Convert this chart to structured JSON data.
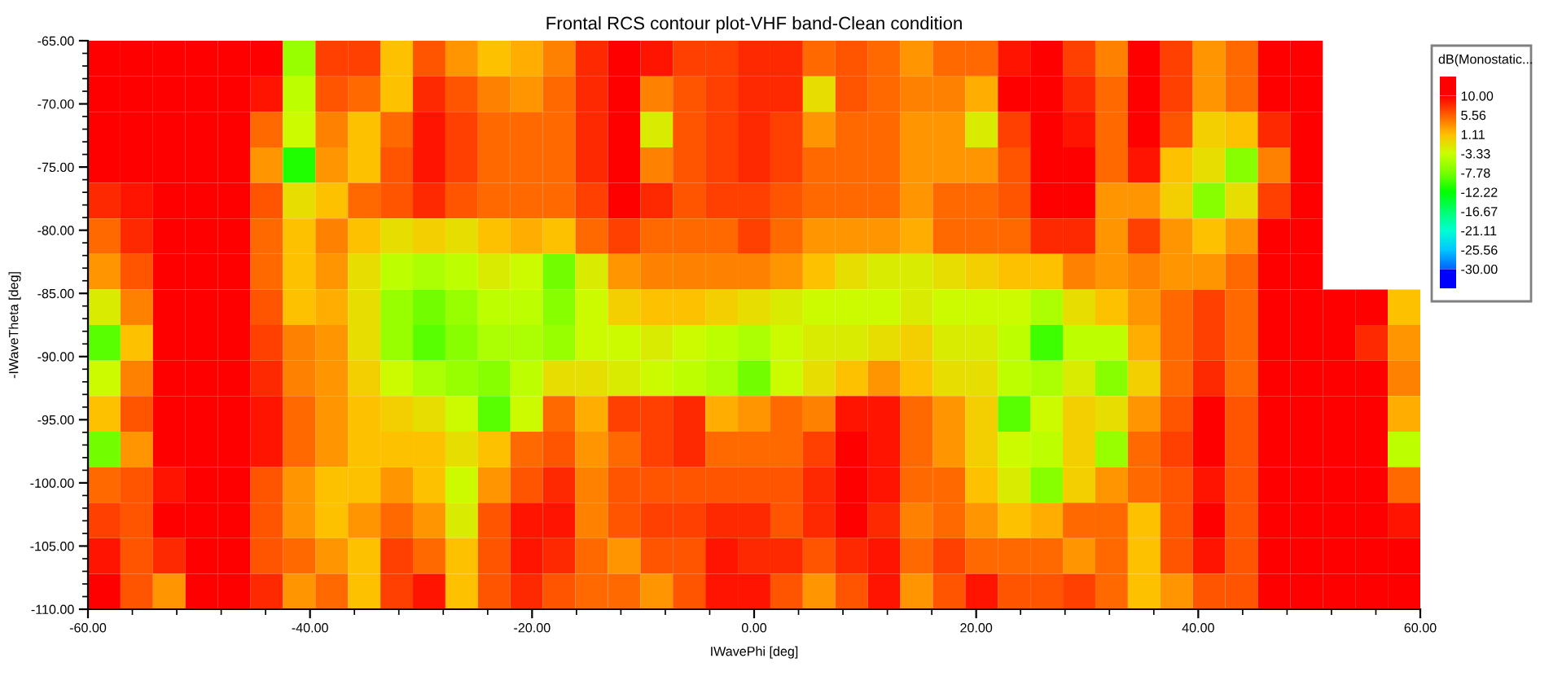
{
  "chart_data": {
    "type": "heatmap",
    "title": "Frontal RCS contour plot-VHF band-Clean condition",
    "xlabel": "IWavePhi [deg]",
    "ylabel": "-IWaveTheta [deg]",
    "clabel": "dB(Monostatic...",
    "cells": [
      [
        10,
        10,
        10,
        10,
        10,
        10,
        -6,
        7,
        7,
        1,
        6,
        3,
        1,
        2,
        4,
        8,
        10,
        9,
        7,
        7,
        8,
        8,
        5,
        6,
        5,
        3,
        5,
        5,
        9,
        10,
        7,
        4,
        10,
        7,
        3,
        5,
        10,
        10,
        null,
        null,
        null
      ],
      [
        10,
        10,
        10,
        10,
        10,
        9,
        -4,
        6,
        5,
        1,
        8,
        6,
        4,
        3,
        5,
        8,
        10,
        4,
        6,
        7,
        8,
        8,
        -1,
        6,
        5,
        4,
        4,
        2,
        10,
        10,
        8,
        5,
        10,
        7,
        3,
        5,
        10,
        10,
        null,
        null,
        null
      ],
      [
        10,
        10,
        10,
        10,
        10,
        5,
        -3,
        4,
        1,
        5,
        9,
        7,
        5,
        5,
        5,
        8,
        10,
        -2,
        6,
        7,
        8,
        7,
        3,
        5,
        5,
        3,
        3,
        -2,
        7,
        10,
        9,
        5,
        10,
        6,
        0,
        1,
        8,
        10,
        null,
        null,
        null
      ],
      [
        10,
        10,
        10,
        10,
        10,
        3,
        -11,
        3,
        1,
        6,
        9,
        7,
        5,
        5,
        5,
        8,
        10,
        4,
        6,
        7,
        8,
        7,
        5,
        5,
        5,
        3,
        3,
        3,
        6,
        10,
        10,
        5,
        9,
        1,
        -1,
        -7,
        4,
        10,
        null,
        null,
        null
      ],
      [
        8,
        9,
        10,
        10,
        10,
        6,
        -1,
        1,
        5,
        6,
        8,
        6,
        5,
        5,
        5,
        7,
        10,
        8,
        6,
        7,
        7,
        6,
        5,
        5,
        5,
        3,
        5,
        5,
        6,
        10,
        10,
        3,
        3,
        0,
        -7,
        -1,
        7,
        10,
        null,
        null,
        null
      ],
      [
        5,
        8,
        10,
        10,
        10,
        5,
        1,
        4,
        1,
        -1,
        0,
        -1,
        1,
        2,
        1,
        5,
        7,
        5,
        5,
        5,
        7,
        5,
        3,
        3,
        3,
        2,
        5,
        5,
        5,
        8,
        8,
        3,
        7,
        3,
        1,
        3,
        10,
        10,
        null,
        null,
        null
      ],
      [
        3,
        6,
        10,
        10,
        10,
        5,
        1,
        3,
        -1,
        -4,
        -5,
        -4,
        -2,
        -3,
        -8,
        -2,
        3,
        4,
        4,
        4,
        4,
        3,
        1,
        -1,
        -2,
        -2,
        -1,
        0,
        1,
        1,
        4,
        3,
        4,
        3,
        3,
        5,
        10,
        10,
        null,
        null,
        null
      ],
      [
        -2,
        4,
        10,
        10,
        10,
        6,
        1,
        2,
        -1,
        -6,
        -8,
        -6,
        -4,
        -4,
        -7,
        -3,
        0,
        1,
        1,
        0,
        -1,
        -2,
        -3,
        -3,
        -3,
        -2,
        -3,
        -3,
        -3,
        -5,
        -1,
        1,
        3,
        5,
        7,
        5,
        10,
        10,
        10,
        10,
        1
      ],
      [
        -9,
        1,
        10,
        10,
        10,
        7,
        4,
        3,
        -1,
        -6,
        -9,
        -7,
        -5,
        -5,
        -6,
        -3,
        -3,
        -2,
        -3,
        -4,
        -5,
        -3,
        -2,
        -2,
        -1,
        0,
        -2,
        -2,
        -4,
        -10,
        -4,
        -4,
        2,
        5,
        7,
        5,
        10,
        10,
        10,
        8,
        3
      ],
      [
        -3,
        4,
        10,
        10,
        10,
        8,
        4,
        3,
        0,
        -3,
        -5,
        -6,
        -7,
        -4,
        -1,
        -1,
        -2,
        -3,
        -4,
        -5,
        -8,
        -3,
        -1,
        1,
        3,
        1,
        -1,
        -1,
        -4,
        -5,
        -2,
        -7,
        0,
        5,
        8,
        5,
        10,
        10,
        10,
        10,
        4
      ],
      [
        1,
        6,
        10,
        10,
        10,
        9,
        5,
        3,
        1,
        0,
        -1,
        -3,
        -9,
        -3,
        5,
        2,
        7,
        7,
        8,
        2,
        3,
        5,
        4,
        9,
        9,
        5,
        3,
        0,
        -9,
        -3,
        0,
        -1,
        3,
        6,
        10,
        6,
        10,
        10,
        10,
        10,
        2
      ],
      [
        -8,
        3,
        10,
        10,
        10,
        9,
        5,
        3,
        1,
        1,
        1,
        -1,
        1,
        5,
        6,
        3,
        5,
        7,
        8,
        5,
        5,
        5,
        7,
        10,
        9,
        5,
        3,
        0,
        -3,
        -4,
        0,
        -6,
        5,
        7,
        10,
        6,
        10,
        10,
        10,
        10,
        -4
      ],
      [
        5,
        6,
        9,
        10,
        10,
        6,
        3,
        1,
        1,
        3,
        1,
        -3,
        3,
        6,
        8,
        4,
        6,
        6,
        6,
        6,
        6,
        6,
        8,
        10,
        9,
        5,
        5,
        1,
        -2,
        -7,
        0,
        3,
        5,
        6,
        9,
        6,
        10,
        10,
        10,
        10,
        5
      ],
      [
        7,
        6,
        10,
        10,
        10,
        6,
        3,
        1,
        3,
        5,
        3,
        -2,
        6,
        9,
        9,
        4,
        6,
        7,
        7,
        8,
        8,
        6,
        8,
        10,
        8,
        4,
        5,
        3,
        1,
        2,
        5,
        5,
        1,
        6,
        10,
        6,
        10,
        10,
        10,
        10,
        9
      ],
      [
        9,
        6,
        8,
        10,
        10,
        6,
        5,
        3,
        1,
        7,
        5,
        1,
        6,
        9,
        8,
        5,
        3,
        6,
        6,
        9,
        8,
        8,
        6,
        8,
        9,
        5,
        7,
        5,
        5,
        5,
        3,
        5,
        1,
        6,
        9,
        6,
        10,
        10,
        10,
        10,
        10
      ],
      [
        10,
        6,
        3,
        10,
        10,
        8,
        3,
        5,
        1,
        7,
        9,
        1,
        6,
        8,
        6,
        5,
        5,
        3,
        6,
        9,
        9,
        6,
        3,
        6,
        9,
        3,
        6,
        9,
        6,
        6,
        7,
        5,
        1,
        3,
        6,
        6,
        10,
        10,
        10,
        10,
        10
      ]
    ],
    "xlim": [
      -60,
      60
    ],
    "ylim": [
      -110,
      -65
    ],
    "xticks": [
      {
        "value": -60,
        "label": "-60.00"
      },
      {
        "value": -56,
        "label": null
      },
      {
        "value": -52,
        "label": null
      },
      {
        "value": -48,
        "label": null
      },
      {
        "value": -44,
        "label": null
      },
      {
        "value": -40,
        "label": "-40.00"
      },
      {
        "value": -36,
        "label": null
      },
      {
        "value": -32,
        "label": null
      },
      {
        "value": -28,
        "label": null
      },
      {
        "value": -24,
        "label": null
      },
      {
        "value": -20,
        "label": "-20.00"
      },
      {
        "value": -16,
        "label": null
      },
      {
        "value": -12,
        "label": null
      },
      {
        "value": -8,
        "label": null
      },
      {
        "value": -4,
        "label": null
      },
      {
        "value": 0,
        "label": "0.00"
      },
      {
        "value": 4,
        "label": null
      },
      {
        "value": 8,
        "label": null
      },
      {
        "value": 12,
        "label": null
      },
      {
        "value": 16,
        "label": null
      },
      {
        "value": 20,
        "label": "20.00"
      },
      {
        "value": 24,
        "label": null
      },
      {
        "value": 28,
        "label": null
      },
      {
        "value": 32,
        "label": null
      },
      {
        "value": 36,
        "label": null
      },
      {
        "value": 40,
        "label": "40.00"
      },
      {
        "value": 44,
        "label": null
      },
      {
        "value": 48,
        "label": null
      },
      {
        "value": 52,
        "label": null
      },
      {
        "value": 56,
        "label": null
      },
      {
        "value": 60,
        "label": "60.00"
      }
    ],
    "yticks": [
      {
        "value": -110,
        "label": "-110.00"
      },
      {
        "value": -109,
        "label": null
      },
      {
        "value": -108,
        "label": null
      },
      {
        "value": -107,
        "label": null
      },
      {
        "value": -106,
        "label": null
      },
      {
        "value": -105,
        "label": "-105.00"
      },
      {
        "value": -104,
        "label": null
      },
      {
        "value": -103,
        "label": null
      },
      {
        "value": -102,
        "label": null
      },
      {
        "value": -101,
        "label": null
      },
      {
        "value": -100,
        "label": "-100.00"
      },
      {
        "value": -99,
        "label": null
      },
      {
        "value": -98,
        "label": null
      },
      {
        "value": -97,
        "label": null
      },
      {
        "value": -96,
        "label": null
      },
      {
        "value": -95,
        "label": "-95.00"
      },
      {
        "value": -94,
        "label": null
      },
      {
        "value": -93,
        "label": null
      },
      {
        "value": -92,
        "label": null
      },
      {
        "value": -91,
        "label": null
      },
      {
        "value": -90,
        "label": "-90.00"
      },
      {
        "value": -89,
        "label": null
      },
      {
        "value": -88,
        "label": null
      },
      {
        "value": -87,
        "label": null
      },
      {
        "value": -86,
        "label": null
      },
      {
        "value": -85,
        "label": "-85.00"
      },
      {
        "value": -84,
        "label": null
      },
      {
        "value": -83,
        "label": null
      },
      {
        "value": -82,
        "label": null
      },
      {
        "value": -81,
        "label": null
      },
      {
        "value": -80,
        "label": "-80.00"
      },
      {
        "value": -79,
        "label": null
      },
      {
        "value": -78,
        "label": null
      },
      {
        "value": -77,
        "label": null
      },
      {
        "value": -76,
        "label": null
      },
      {
        "value": -75,
        "label": "-75.00"
      },
      {
        "value": -74,
        "label": null
      },
      {
        "value": -73,
        "label": null
      },
      {
        "value": -72,
        "label": null
      },
      {
        "value": -71,
        "label": null
      },
      {
        "value": -70,
        "label": "-70.00"
      },
      {
        "value": -69,
        "label": null
      },
      {
        "value": -68,
        "label": null
      },
      {
        "value": -67,
        "label": null
      },
      {
        "value": -66,
        "label": null
      },
      {
        "value": -65,
        "label": "-65.00"
      }
    ],
    "clim": [
      -30,
      10
    ],
    "cticks": [
      {
        "value": 10,
        "label": "10.00"
      },
      {
        "value": 5.56,
        "label": "5.56"
      },
      {
        "value": 1.11,
        "label": "1.11"
      },
      {
        "value": -3.33,
        "label": "-3.33"
      },
      {
        "value": -7.78,
        "label": "-7.78"
      },
      {
        "value": -12.22,
        "label": "-12.22"
      },
      {
        "value": -16.67,
        "label": "-16.67"
      },
      {
        "value": -21.11,
        "label": "-21.11"
      },
      {
        "value": -25.56,
        "label": "-25.56"
      },
      {
        "value": -30,
        "label": "-30.00"
      }
    ]
  }
}
